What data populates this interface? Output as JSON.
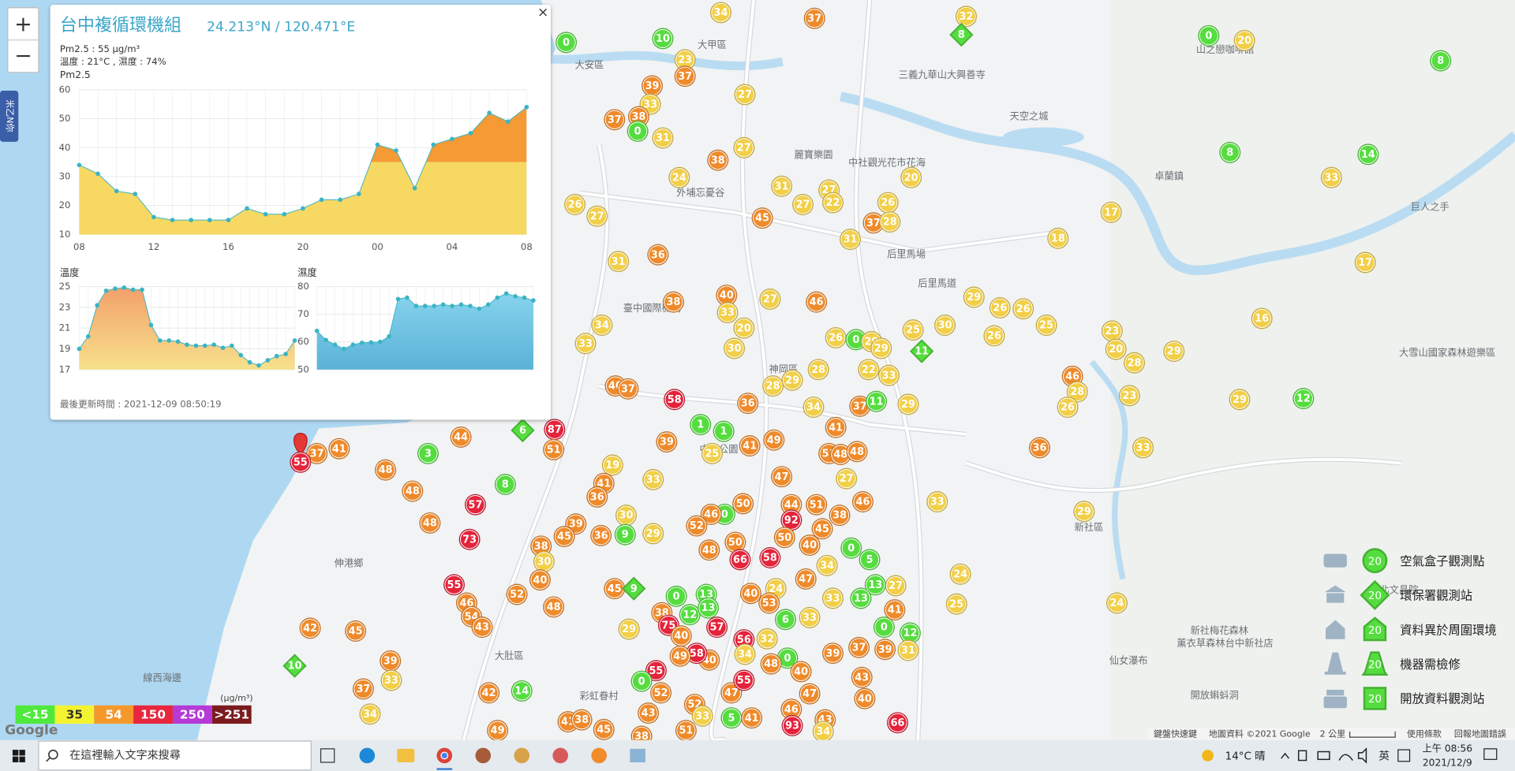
{
  "zoom": {
    "in": "+",
    "out": "−"
  },
  "side_tab": "米乙N你",
  "popup": {
    "title": "台中複循環機組",
    "coords": "24.213°N / 120.471°E",
    "close": "×",
    "pm25_line": "Pm2.5 : 55 μg/m³",
    "weather_line": "溫度 : 21°C , 濕度 : 74%",
    "updated": "最後更新時間 : 2021-12-09 08:50:19"
  },
  "chart_data": [
    {
      "type": "area",
      "title": "Pm2.5",
      "values": [
        34,
        31,
        25,
        24,
        16,
        15,
        15,
        15,
        15,
        19,
        17,
        17,
        19,
        22,
        22,
        24,
        41,
        39,
        26,
        41,
        43,
        45,
        52,
        49,
        54
      ],
      "x_labels": [
        "08",
        "12",
        "16",
        "20",
        "00",
        "04",
        "08"
      ],
      "ylim": [
        10,
        60
      ],
      "yticks": [
        10,
        20,
        30,
        40,
        50,
        60
      ],
      "threshold": 35,
      "low_color": "#f7d862",
      "high_color": "#f59a35",
      "dot_color": "#3ab4c4"
    },
    {
      "type": "area",
      "title": "溫度",
      "values": [
        19,
        20.2,
        23.2,
        24.6,
        24.8,
        24.9,
        24.7,
        24.7,
        21.3,
        19.8,
        19.8,
        19.7,
        19.4,
        19.3,
        19.3,
        19.4,
        19.1,
        19.3,
        18.4,
        17.7,
        17.4,
        17.9,
        18.3,
        18.5,
        19.8
      ],
      "ylim": [
        17,
        25
      ],
      "yticks": [
        17,
        19,
        21,
        23,
        25
      ],
      "fill": "url(#tempGrad)",
      "dot_color": "#3ab4c4"
    },
    {
      "type": "area",
      "title": "濕度",
      "values": [
        64,
        60.7,
        59,
        57.5,
        59,
        59.7,
        59.8,
        60,
        62,
        75.5,
        76,
        73,
        73,
        73,
        73.5,
        73,
        73.5,
        73,
        72,
        73.5,
        76,
        77.5,
        76.5,
        76,
        75
      ],
      "ylim": [
        50,
        80
      ],
      "yticks": [
        50,
        60,
        70,
        80
      ],
      "fill": "url(#humGrad)",
      "dot_color": "#3ab4c4"
    }
  ],
  "markers": {
    "box_values": [
      34,
      37,
      32,
      0,
      20,
      8,
      0,
      10,
      23,
      37,
      39,
      33,
      37,
      38,
      0,
      31,
      27,
      27,
      38,
      24,
      31,
      27,
      27,
      45,
      22,
      26,
      20,
      37,
      28,
      31,
      8,
      14,
      33,
      17,
      18,
      17,
      16,
      26,
      27,
      31,
      36,
      38,
      40,
      33,
      20,
      30,
      27,
      46,
      26,
      0,
      29,
      29,
      22,
      33,
      25,
      30,
      29,
      26,
      26,
      26,
      25,
      23,
      20,
      28,
      29,
      46,
      28,
      26,
      23,
      33,
      36,
      29,
      12,
      28,
      29,
      28,
      34,
      37,
      11,
      29,
      36,
      58,
      34,
      33,
      40,
      37,
      87,
      51,
      39,
      41,
      49,
      41,
      51,
      48,
      48,
      25,
      1,
      1,
      47,
      27,
      46,
      38,
      51,
      44,
      50,
      0,
      46,
      52,
      48,
      50,
      92,
      50,
      45,
      58,
      66,
      40,
      0,
      5,
      27,
      13,
      13,
      34,
      47,
      33,
      19,
      41,
      36,
      39,
      45,
      36,
      30,
      9,
      29,
      38,
      30,
      40,
      48,
      52,
      45,
      55,
      46,
      54,
      43,
      73,
      57,
      48,
      48,
      48,
      3,
      44,
      8,
      41,
      37,
      55,
      42,
      45,
      39,
      33,
      37,
      34,
      42,
      14,
      49,
      41,
      38,
      45,
      0,
      13,
      12,
      38,
      75,
      40,
      29,
      13,
      57,
      40,
      24,
      53,
      56,
      32,
      6,
      33,
      33,
      0,
      12,
      41,
      39,
      31,
      37,
      39,
      0,
      40,
      48,
      34,
      40,
      58,
      49,
      55,
      0,
      52,
      52,
      33,
      5,
      41,
      46,
      47,
      93,
      43,
      34,
      43,
      40,
      66,
      47,
      55,
      25,
      24,
      33,
      29,
      24,
      51,
      43,
      38
    ],
    "epa_values": [
      8,
      11,
      6,
      9,
      10
    ]
  },
  "scale": {
    "unit": "(μg/m³)",
    "items": [
      {
        "value": 15,
        "label": "<15",
        "color": "#4fe83c",
        "marker_color": "#55dd3f"
      },
      {
        "value": 35,
        "label": "35",
        "color": "#f4f332",
        "marker_color": "#f2cf47"
      },
      {
        "value": 54,
        "label": "54",
        "color": "#f5982c",
        "marker_color": "#ef8a2a"
      },
      {
        "value": 150,
        "label": "150",
        "color": "#e8263d",
        "marker_color": "#e5233b"
      },
      {
        "value": 250,
        "label": "250",
        "color": "#b63ad6",
        "marker_color": "#b63ad6"
      },
      {
        "value": 251,
        "label": ">251",
        "color": "#7b1b1e",
        "marker_color": "#7b1b1e"
      }
    ]
  },
  "legend": {
    "sample": "20",
    "items": [
      "空氣盒子觀測點",
      "環保署觀測站",
      "資料異於周圍環境",
      "機器需檢修",
      "開放資料觀測站"
    ]
  },
  "places": [
    "大甲區",
    "大安區",
    "三義九華山大興善寺",
    "天空之城",
    "山之戀咖啡館",
    "卓蘭鎮",
    "巨人之手",
    "外埔忘憂谷",
    "麗寶樂園",
    "中社觀光花市花海",
    "后里馬場",
    "后里馬道",
    "臺中國際機場",
    "神岡區",
    "中央公園",
    "伸港鄉",
    "線西海邊",
    "大肚區",
    "彩虹眷村",
    "新社區",
    "大雪山國家森林遊樂區",
    "北文昌院",
    "新社梅花森林",
    "薰衣草森林台中新社店",
    "仙女瀑布",
    "開放蝌蚪洞"
  ],
  "attribution": {
    "logo": "Google",
    "shortcuts": "鍵盤快速鍵",
    "data": "地圖資料 ©2021 Google",
    "distance": "2 公里",
    "terms": "使用條款",
    "report": "回報地圖錯誤"
  },
  "taskbar": {
    "search": "在這裡輸入文字來搜尋",
    "weather": "14°C 晴",
    "ime": "英",
    "time": "上午 08:56",
    "date": "2021/12/9"
  }
}
